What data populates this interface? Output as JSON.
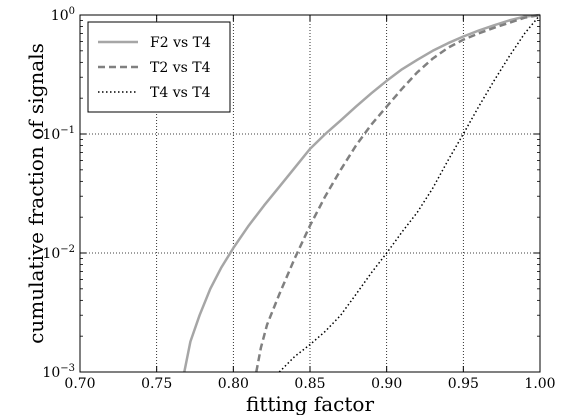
{
  "chart_data": {
    "type": "line",
    "xlabel": "fitting factor",
    "ylabel": "cumulative fraction of signals",
    "xlim": [
      0.7,
      1.0
    ],
    "ylim": [
      0.001,
      1
    ],
    "yscale": "log",
    "grid": true,
    "legend_position": "top-left",
    "x_ticks": [
      "0.70",
      "0.75",
      "0.80",
      "0.85",
      "0.90",
      "0.95",
      "1.00"
    ],
    "x_tick_values": [
      0.7,
      0.75,
      0.8,
      0.85,
      0.9,
      0.95,
      1.0
    ],
    "y_tick_values": [
      0.001,
      0.01,
      0.1,
      1
    ],
    "y_ticks": [
      {
        "base": "10",
        "exp": "−3"
      },
      {
        "base": "10",
        "exp": "−2"
      },
      {
        "base": "10",
        "exp": "−1"
      },
      {
        "base": "10",
        "exp": "0"
      }
    ],
    "series": [
      {
        "name": "F2 vs T4",
        "style": "solid",
        "color": "#a6a6a6",
        "points": [
          [
            0.768,
            0.001
          ],
          [
            0.772,
            0.0018
          ],
          [
            0.778,
            0.003
          ],
          [
            0.785,
            0.005
          ],
          [
            0.792,
            0.0075
          ],
          [
            0.8,
            0.011
          ],
          [
            0.81,
            0.017
          ],
          [
            0.82,
            0.025
          ],
          [
            0.83,
            0.036
          ],
          [
            0.84,
            0.052
          ],
          [
            0.85,
            0.075
          ],
          [
            0.86,
            0.1
          ],
          [
            0.87,
            0.13
          ],
          [
            0.88,
            0.17
          ],
          [
            0.89,
            0.22
          ],
          [
            0.9,
            0.28
          ],
          [
            0.91,
            0.35
          ],
          [
            0.92,
            0.42
          ],
          [
            0.93,
            0.5
          ],
          [
            0.94,
            0.58
          ],
          [
            0.95,
            0.66
          ],
          [
            0.96,
            0.74
          ],
          [
            0.97,
            0.82
          ],
          [
            0.98,
            0.9
          ],
          [
            0.99,
            0.97
          ],
          [
            1.0,
            1.0
          ]
        ]
      },
      {
        "name": "T2 vs T4",
        "style": "dashed",
        "color": "#808080",
        "points": [
          [
            0.815,
            0.001
          ],
          [
            0.818,
            0.0016
          ],
          [
            0.822,
            0.0025
          ],
          [
            0.83,
            0.0045
          ],
          [
            0.84,
            0.009
          ],
          [
            0.85,
            0.017
          ],
          [
            0.86,
            0.03
          ],
          [
            0.87,
            0.05
          ],
          [
            0.88,
            0.08
          ],
          [
            0.89,
            0.12
          ],
          [
            0.9,
            0.17
          ],
          [
            0.91,
            0.24
          ],
          [
            0.92,
            0.33
          ],
          [
            0.93,
            0.43
          ],
          [
            0.94,
            0.53
          ],
          [
            0.95,
            0.62
          ],
          [
            0.96,
            0.7
          ],
          [
            0.97,
            0.78
          ],
          [
            0.98,
            0.86
          ],
          [
            0.99,
            0.95
          ],
          [
            1.0,
            1.0
          ]
        ]
      },
      {
        "name": "T4 vs T4",
        "style": "dotted",
        "color": "#000000",
        "points": [
          [
            0.83,
            0.001
          ],
          [
            0.84,
            0.00135
          ],
          [
            0.85,
            0.0017
          ],
          [
            0.86,
            0.0022
          ],
          [
            0.87,
            0.003
          ],
          [
            0.88,
            0.0045
          ],
          [
            0.89,
            0.0068
          ],
          [
            0.9,
            0.01
          ],
          [
            0.91,
            0.015
          ],
          [
            0.92,
            0.022
          ],
          [
            0.93,
            0.035
          ],
          [
            0.94,
            0.06
          ],
          [
            0.95,
            0.1
          ],
          [
            0.96,
            0.17
          ],
          [
            0.97,
            0.28
          ],
          [
            0.98,
            0.45
          ],
          [
            0.99,
            0.7
          ],
          [
            1.0,
            1.0
          ]
        ]
      }
    ]
  }
}
